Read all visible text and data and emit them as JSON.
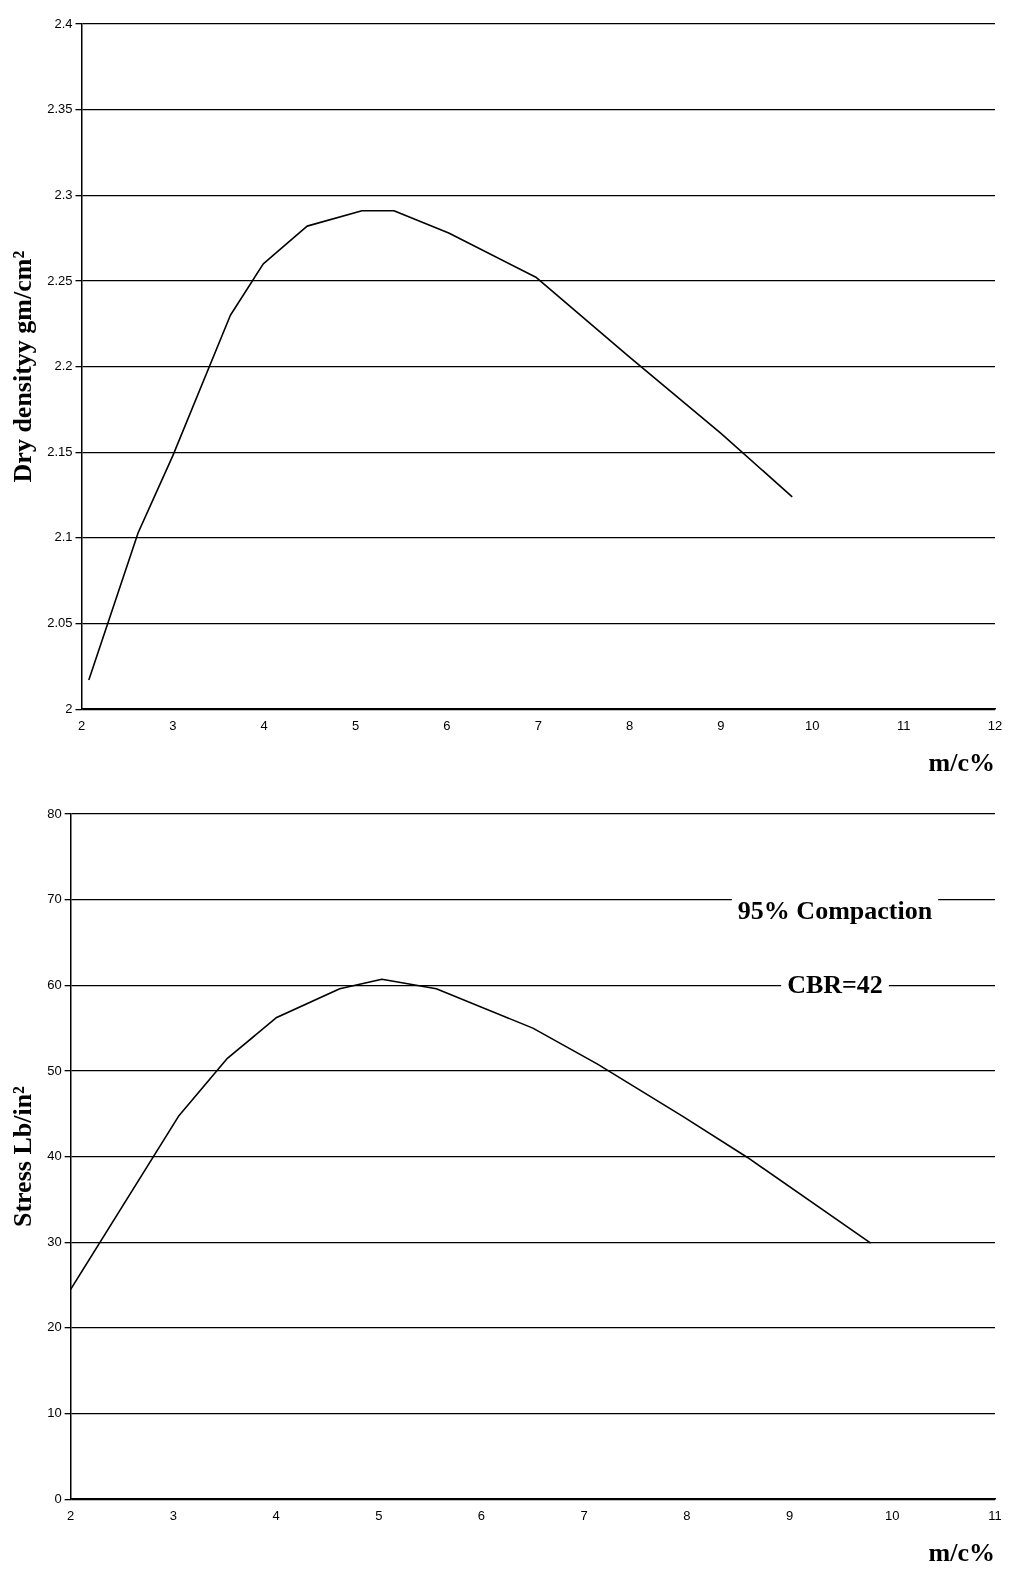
{
  "chart_data": [
    {
      "type": "line",
      "xlabel": "m/c%",
      "ylabel": "Dry densityy gm/cm²",
      "xlim": [
        2,
        12
      ],
      "xticks": [
        2,
        3,
        4,
        5,
        6,
        7,
        8,
        9,
        10,
        11,
        12
      ],
      "ylim": [
        2,
        2.4
      ],
      "yticks": [
        2,
        2.05,
        2.1,
        2.15,
        2.2,
        2.25,
        2.3,
        2.35,
        2.4
      ],
      "grid": "y",
      "marker": "none",
      "legend": false,
      "series": [
        {
          "color": "#000000",
          "x": [
            2.08,
            2.62,
            3.0,
            3.63,
            3.99,
            4.47,
            5.07,
            5.42,
            6.02,
            6.98,
            7.99,
            9.0,
            9.78
          ],
          "values": [
            2.017,
            2.103,
            2.148,
            2.23,
            2.26,
            2.282,
            2.291,
            2.291,
            2.278,
            2.252,
            2.206,
            2.161,
            2.124
          ]
        }
      ]
    },
    {
      "type": "line",
      "xlabel": "m/c%",
      "ylabel": "Stress Lb/in²",
      "xlim": [
        2,
        11
      ],
      "xticks": [
        2,
        3,
        4,
        5,
        6,
        7,
        8,
        9,
        10,
        11
      ],
      "ylim": [
        0,
        80
      ],
      "yticks": [
        0,
        10,
        20,
        30,
        40,
        50,
        60,
        70,
        80
      ],
      "grid": "y",
      "marker": "none",
      "legend": false,
      "annotations": [
        "95% Compaction",
        "CBR=42"
      ],
      "series": [
        {
          "color": "#000000",
          "x": [
            2,
            3.05,
            3.52,
            4.0,
            4.62,
            5.03,
            5.56,
            6.5,
            7.13,
            7.96,
            8.59,
            9.79
          ],
          "values": [
            24.5,
            44.7,
            51.4,
            56.2,
            59.6,
            60.7,
            59.6,
            55,
            50.8,
            44.7,
            39.9,
            29.9
          ]
        }
      ]
    }
  ]
}
